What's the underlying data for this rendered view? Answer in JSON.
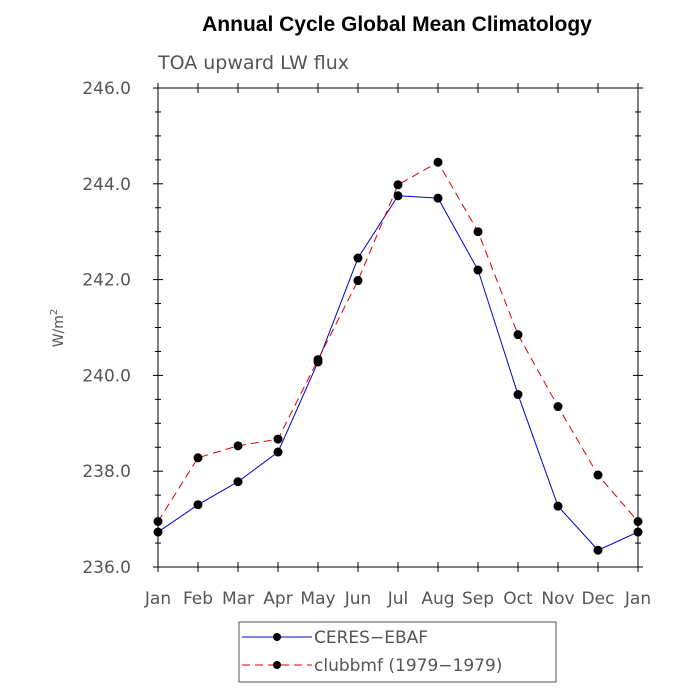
{
  "chart_data": {
    "type": "line",
    "title": "Annual Cycle Global Mean Climatology",
    "subtitle": "TOA upward LW flux",
    "xlabel": "",
    "ylabel": "W/m",
    "ylabel_superscript": "2",
    "categories": [
      "Jan",
      "Feb",
      "Mar",
      "Apr",
      "May",
      "Jun",
      "Jul",
      "Aug",
      "Sep",
      "Oct",
      "Nov",
      "Dec",
      "Jan"
    ],
    "ylim": [
      236.0,
      246.0
    ],
    "yticks": [
      "236.0",
      "238.0",
      "240.0",
      "242.0",
      "244.0",
      "246.0"
    ],
    "ytick_values": [
      236,
      238,
      240,
      242,
      244,
      246
    ],
    "grid": false,
    "legend_position": "bottom",
    "series": [
      {
        "name": "CERES−EBAF",
        "color": "#0000cc",
        "dash": "solid",
        "values": [
          236.73,
          237.3,
          237.78,
          238.4,
          240.28,
          242.45,
          243.75,
          243.7,
          242.2,
          239.6,
          237.27,
          236.35,
          236.73
        ]
      },
      {
        "name": "clubbmf (1979−1979)",
        "color": "#dd0000",
        "dash": "dashed",
        "values": [
          236.95,
          238.28,
          238.53,
          238.67,
          240.33,
          241.98,
          243.98,
          244.45,
          243.0,
          240.85,
          239.35,
          237.92,
          236.95
        ]
      }
    ]
  }
}
